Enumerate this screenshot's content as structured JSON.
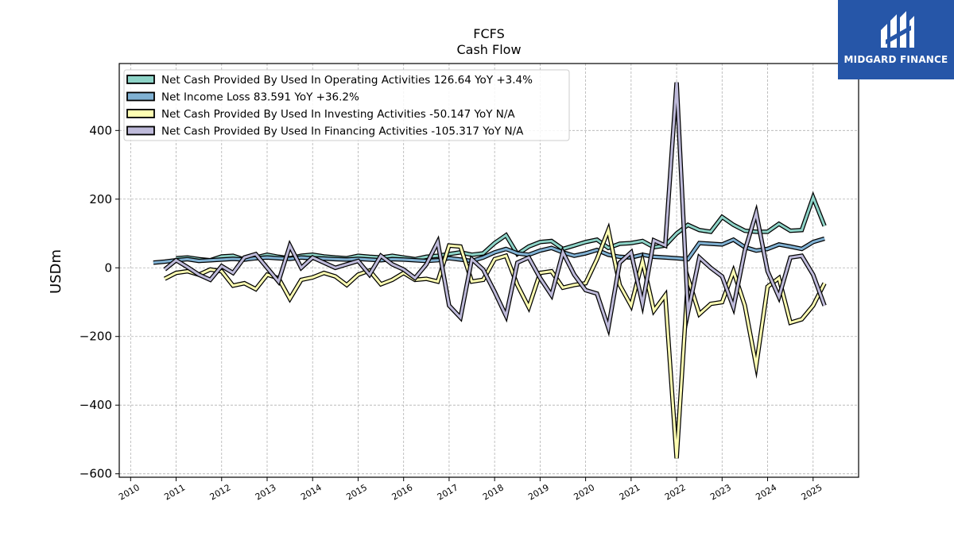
{
  "brand": {
    "name": "MIDGARD FINANCE",
    "color": "#2656a8"
  },
  "chart_data": {
    "type": "line",
    "title": "FCFS",
    "subtitle": "Cash Flow",
    "xlabel": "",
    "ylabel": "USDm",
    "xlim": [
      2009.75,
      2026.0
    ],
    "ylim": [
      -610,
      595
    ],
    "xticks": [
      "2010",
      "2011",
      "2012",
      "2013",
      "2014",
      "2015",
      "2016",
      "2017",
      "2018",
      "2019",
      "2020",
      "2021",
      "2022",
      "2023",
      "2024",
      "2025"
    ],
    "yticks": [
      -600,
      -400,
      -200,
      0,
      200,
      400
    ],
    "ytick_labels": [
      "−600",
      "−400",
      "−200",
      "0",
      "200",
      "400"
    ],
    "grid": true,
    "legend_position": "top-left",
    "series": [
      {
        "name": "Net Cash Provided By Used In Operating Activities  126.64 YoY +3.4%",
        "color": "#8dd3c7",
        "x": [
          2011.0,
          2011.25,
          2011.5,
          2011.75,
          2012.0,
          2012.25,
          2012.5,
          2012.75,
          2013.0,
          2013.25,
          2013.5,
          2013.75,
          2014.0,
          2014.25,
          2014.5,
          2014.75,
          2015.0,
          2015.25,
          2015.5,
          2015.75,
          2016.0,
          2016.25,
          2016.5,
          2016.75,
          2017.0,
          2017.25,
          2017.5,
          2017.75,
          2018.0,
          2018.25,
          2018.5,
          2018.75,
          2019.0,
          2019.25,
          2019.5,
          2019.75,
          2020.0,
          2020.25,
          2020.5,
          2020.75,
          2021.0,
          2021.25,
          2021.5,
          2021.75,
          2022.0,
          2022.25,
          2022.5,
          2022.75,
          2023.0,
          2023.25,
          2023.5,
          2023.75,
          2024.0,
          2024.25,
          2024.5,
          2024.75,
          2025.0,
          2025.25
        ],
        "values": [
          28,
          30,
          25,
          22,
          33,
          35,
          24,
          30,
          38,
          32,
          28,
          35,
          38,
          33,
          30,
          28,
          35,
          32,
          30,
          35,
          30,
          25,
          32,
          35,
          40,
          45,
          38,
          42,
          72,
          95,
          40,
          62,
          75,
          78,
          55,
          65,
          75,
          82,
          58,
          70,
          72,
          78,
          60,
          65,
          100,
          125,
          110,
          105,
          148,
          125,
          108,
          105,
          105,
          128,
          108,
          110,
          205,
          122
        ]
      },
      {
        "name": "Net Income Loss  83.591 YoY +36.2%",
        "color": "#80b1d3",
        "x": [
          2010.5,
          2010.75,
          2011.0,
          2011.25,
          2011.5,
          2011.75,
          2012.0,
          2012.25,
          2012.5,
          2012.75,
          2013.0,
          2013.25,
          2013.5,
          2013.75,
          2014.0,
          2014.25,
          2014.5,
          2014.75,
          2015.0,
          2015.25,
          2015.5,
          2015.75,
          2016.0,
          2016.25,
          2016.5,
          2016.75,
          2017.0,
          2017.25,
          2017.5,
          2017.75,
          2018.0,
          2018.25,
          2018.5,
          2018.75,
          2019.0,
          2019.25,
          2019.5,
          2019.75,
          2020.0,
          2020.25,
          2020.5,
          2020.75,
          2021.0,
          2021.25,
          2021.5,
          2021.75,
          2022.0,
          2022.25,
          2022.5,
          2022.75,
          2023.0,
          2023.25,
          2023.5,
          2023.75,
          2024.0,
          2024.25,
          2024.5,
          2024.75,
          2025.0,
          2025.25
        ],
        "values": [
          15,
          18,
          22,
          25,
          20,
          22,
          24,
          26,
          24,
          28,
          30,
          28,
          26,
          30,
          28,
          27,
          25,
          24,
          26,
          24,
          22,
          25,
          24,
          22,
          20,
          22,
          28,
          24,
          20,
          30,
          45,
          55,
          42,
          38,
          50,
          58,
          45,
          35,
          42,
          52,
          38,
          32,
          30,
          38,
          32,
          30,
          28,
          25,
          72,
          70,
          68,
          82,
          60,
          50,
          55,
          68,
          62,
          55,
          75,
          85
        ]
      },
      {
        "name": "Net Cash Provided By Used In Investing Activities  -50.147 YoY N/A",
        "color": "#ffffb3",
        "x": [
          2010.75,
          2011.0,
          2011.25,
          2011.5,
          2011.75,
          2012.0,
          2012.25,
          2012.5,
          2012.75,
          2013.0,
          2013.25,
          2013.5,
          2013.75,
          2014.0,
          2014.25,
          2014.5,
          2014.75,
          2015.0,
          2015.25,
          2015.5,
          2015.75,
          2016.0,
          2016.25,
          2016.5,
          2016.75,
          2017.0,
          2017.25,
          2017.5,
          2017.75,
          2018.0,
          2018.25,
          2018.5,
          2018.75,
          2019.0,
          2019.25,
          2019.5,
          2019.75,
          2020.0,
          2020.25,
          2020.5,
          2020.75,
          2021.0,
          2021.25,
          2021.5,
          2021.75,
          2022.0,
          2022.25,
          2022.5,
          2022.75,
          2023.0,
          2023.25,
          2023.5,
          2023.75,
          2024.0,
          2024.25,
          2024.5,
          2024.75,
          2025.0,
          2025.25
        ],
        "values": [
          -32,
          -15,
          -10,
          -20,
          -5,
          -10,
          -52,
          -45,
          -62,
          -20,
          -30,
          -90,
          -35,
          -28,
          -15,
          -25,
          -50,
          -20,
          -8,
          -48,
          -35,
          -15,
          -35,
          -32,
          -40,
          65,
          62,
          -40,
          -35,
          25,
          35,
          -50,
          -115,
          -15,
          -10,
          -58,
          -50,
          -45,
          25,
          110,
          -50,
          -110,
          20,
          -125,
          -80,
          -555,
          -30,
          -135,
          -105,
          -100,
          -10,
          -110,
          -285,
          -55,
          -30,
          -160,
          -150,
          -110,
          -45
        ]
      },
      {
        "name": "Net Cash Provided By Used In Financing Activities  -105.317 YoY N/A",
        "color": "#bebada",
        "x": [
          2010.75,
          2011.0,
          2011.25,
          2011.5,
          2011.75,
          2012.0,
          2012.25,
          2012.5,
          2012.75,
          2013.0,
          2013.25,
          2013.5,
          2013.75,
          2014.0,
          2014.25,
          2014.5,
          2014.75,
          2015.0,
          2015.25,
          2015.5,
          2015.75,
          2016.0,
          2016.25,
          2016.5,
          2016.75,
          2017.0,
          2017.25,
          2017.5,
          2017.75,
          2018.0,
          2018.25,
          2018.5,
          2018.75,
          2019.0,
          2019.25,
          2019.5,
          2019.75,
          2020.0,
          2020.25,
          2020.5,
          2020.75,
          2021.0,
          2021.25,
          2021.5,
          2021.75,
          2022.0,
          2022.25,
          2022.5,
          2022.75,
          2023.0,
          2023.25,
          2023.5,
          2023.75,
          2024.0,
          2024.25,
          2024.5,
          2024.75,
          2025.0,
          2025.25
        ],
        "values": [
          -5,
          22,
          2,
          -20,
          -35,
          5,
          -15,
          30,
          40,
          0,
          -40,
          65,
          0,
          30,
          15,
          0,
          10,
          20,
          -20,
          35,
          10,
          -5,
          -30,
          10,
          75,
          -110,
          -145,
          25,
          -5,
          -70,
          -140,
          15,
          30,
          -30,
          -80,
          45,
          -20,
          -65,
          -75,
          -175,
          15,
          45,
          -105,
          80,
          65,
          540,
          -130,
          30,
          0,
          -25,
          -115,
          50,
          160,
          -10,
          -85,
          30,
          35,
          -20,
          -110
        ]
      }
    ]
  }
}
